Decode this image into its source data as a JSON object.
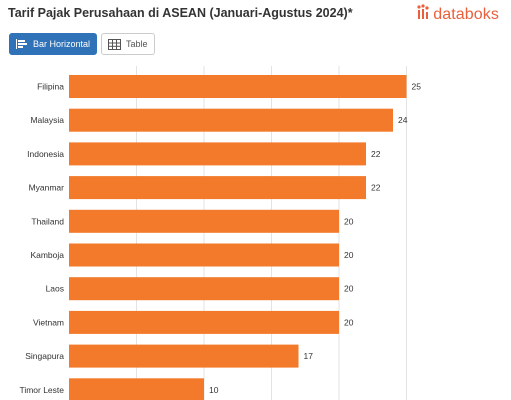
{
  "header": {
    "title": "Tarif Pajak Perusahaan di ASEAN (Januari-Agustus 2024)*",
    "brand": "databoks"
  },
  "tabs": [
    {
      "label": "Bar Horizontal",
      "active": true,
      "icon": "bar-horizontal-icon"
    },
    {
      "label": "Table",
      "active": false,
      "icon": "table-grid-icon"
    }
  ],
  "colors": {
    "bar": "#f27a2a",
    "brand": "#e8603c",
    "active_tab": "#2f72b7",
    "grid": "#e3e3e3"
  },
  "chart_data": {
    "type": "bar",
    "orientation": "horizontal",
    "categories": [
      "Filipina",
      "Malaysia",
      "Indonesia",
      "Myanmar",
      "Thailand",
      "Kamboja",
      "Laos",
      "Vietnam",
      "Singapura",
      "Timor Leste"
    ],
    "values": [
      25,
      24,
      22,
      22,
      20,
      20,
      20,
      20,
      17,
      10
    ],
    "xlim": [
      0,
      27
    ],
    "x_grid_values": [
      5,
      10,
      15,
      20,
      25
    ],
    "grid": true,
    "data_labels": true
  }
}
